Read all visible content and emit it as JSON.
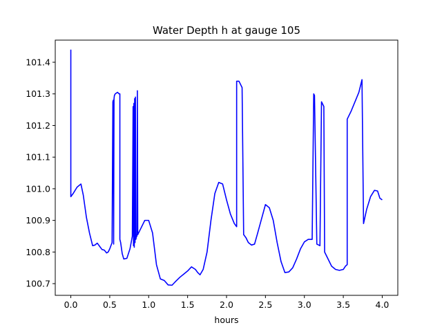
{
  "chart_data": {
    "type": "line",
    "title": "Water Depth h at gauge 105",
    "xlabel": "hours",
    "ylabel": "",
    "xlim": [
      -0.2,
      4.2
    ],
    "ylim": [
      100.663,
      101.47
    ],
    "x_ticks": [
      0.0,
      0.5,
      1.0,
      1.5,
      2.0,
      2.5,
      3.0,
      3.5,
      4.0
    ],
    "x_tick_labels": [
      "0.0",
      "0.5",
      "1.0",
      "1.5",
      "2.0",
      "2.5",
      "3.0",
      "3.5",
      "4.0"
    ],
    "y_ticks": [
      100.7,
      100.8,
      100.9,
      101.0,
      101.1,
      101.2,
      101.3,
      101.4
    ],
    "y_tick_labels": [
      "100.7",
      "100.8",
      "100.9",
      "101.0",
      "101.1",
      "101.2",
      "101.3",
      "101.4"
    ],
    "grid": false,
    "colors": {
      "line": "#0000ff",
      "axes": "#000000",
      "background": "#ffffff"
    },
    "series": [
      {
        "name": "",
        "x": [
          0.0,
          0.0,
          0.0,
          0.03,
          0.08,
          0.13,
          0.16,
          0.2,
          0.24,
          0.28,
          0.31,
          0.34,
          0.37,
          0.4,
          0.43,
          0.46,
          0.48,
          0.5,
          0.53,
          0.54,
          0.545,
          0.55,
          0.55,
          0.555,
          0.555,
          0.56,
          0.56,
          0.57,
          0.6,
          0.62,
          0.63,
          0.63,
          0.64,
          0.66,
          0.68,
          0.72,
          0.76,
          0.79,
          0.8,
          0.8,
          0.805,
          0.805,
          0.81,
          0.81,
          0.815,
          0.815,
          0.82,
          0.82,
          0.825,
          0.825,
          0.83,
          0.83,
          0.835,
          0.835,
          0.84,
          0.845,
          0.85,
          0.855,
          0.855,
          0.86,
          0.86,
          0.87,
          0.87,
          0.9,
          0.95,
          1.0,
          1.05,
          1.1,
          1.15,
          1.2,
          1.25,
          1.3,
          1.35,
          1.4,
          1.45,
          1.5,
          1.55,
          1.6,
          1.63,
          1.66,
          1.7,
          1.75,
          1.8,
          1.85,
          1.9,
          1.95,
          2.0,
          2.05,
          2.1,
          2.13,
          2.13,
          2.16,
          2.2,
          2.2,
          2.22,
          2.25,
          2.28,
          2.32,
          2.36,
          2.4,
          2.45,
          2.5,
          2.55,
          2.6,
          2.65,
          2.7,
          2.75,
          2.8,
          2.85,
          2.9,
          2.95,
          3.0,
          3.05,
          3.1,
          3.12,
          3.13,
          3.13,
          3.16,
          3.16,
          3.2,
          3.22,
          3.22,
          3.25,
          3.26,
          3.26,
          3.3,
          3.35,
          3.4,
          3.45,
          3.5,
          3.53,
          3.55,
          3.55,
          3.6,
          3.65,
          3.7,
          3.74,
          3.74,
          3.76,
          3.8,
          3.85,
          3.9,
          3.94,
          3.97,
          4.0
        ],
        "y": [
          101.44,
          101.44,
          100.975,
          100.985,
          101.005,
          101.015,
          100.98,
          100.91,
          100.86,
          100.82,
          100.822,
          100.828,
          100.818,
          100.808,
          100.806,
          100.797,
          100.8,
          100.81,
          100.83,
          101.275,
          101.28,
          100.825,
          100.825,
          101.285,
          101.285,
          101.295,
          101.295,
          101.3,
          101.305,
          101.3,
          101.3,
          100.84,
          100.83,
          100.795,
          100.778,
          100.78,
          100.81,
          100.85,
          101.26,
          101.26,
          100.82,
          100.82,
          101.27,
          101.27,
          100.815,
          100.815,
          101.285,
          101.285,
          100.83,
          100.83,
          101.29,
          101.29,
          100.84,
          100.84,
          100.845,
          100.855,
          100.85,
          101.31,
          101.31,
          100.855,
          100.855,
          100.86,
          100.86,
          100.875,
          100.9,
          100.9,
          100.86,
          100.76,
          100.715,
          100.71,
          100.696,
          100.695,
          100.708,
          100.72,
          100.73,
          100.74,
          100.753,
          100.745,
          100.735,
          100.728,
          100.745,
          100.8,
          100.9,
          100.985,
          101.02,
          101.015,
          100.965,
          100.92,
          100.89,
          100.88,
          101.34,
          101.34,
          101.32,
          101.32,
          100.855,
          100.845,
          100.83,
          100.822,
          100.825,
          100.86,
          100.905,
          100.95,
          100.94,
          100.9,
          100.83,
          100.77,
          100.735,
          100.737,
          100.75,
          100.778,
          100.81,
          100.832,
          100.84,
          100.84,
          101.3,
          101.295,
          101.295,
          100.825,
          100.825,
          100.82,
          101.275,
          101.275,
          101.26,
          100.8,
          100.8,
          100.78,
          100.755,
          100.745,
          100.742,
          100.745,
          100.756,
          100.76,
          101.22,
          101.245,
          101.275,
          101.305,
          101.345,
          101.345,
          100.89,
          100.935,
          100.975,
          100.995,
          100.993,
          100.97,
          100.965
        ]
      }
    ]
  }
}
